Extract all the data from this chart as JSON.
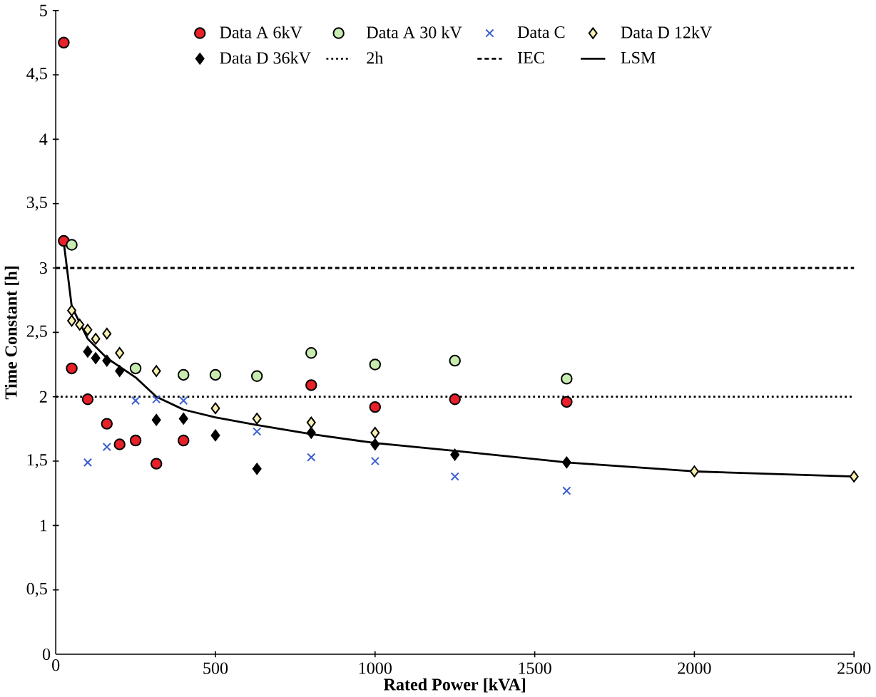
{
  "chart_data": {
    "type": "scatter",
    "xlabel": "Rated Power [kVA]",
    "ylabel": "Time Constant [h]",
    "xlim": [
      0,
      2500
    ],
    "ylim": [
      0,
      5
    ],
    "xticks": [
      0,
      500,
      1000,
      1500,
      2000,
      2500
    ],
    "yticks": [
      0,
      {
        "value": 0.5,
        "label": "0,5"
      },
      1,
      {
        "value": 1.5,
        "label": "1,5"
      },
      2,
      {
        "value": 2.5,
        "label": "2,5"
      },
      3,
      {
        "value": 3.5,
        "label": "3,5"
      },
      4,
      {
        "value": 4.5,
        "label": "4,5"
      },
      5
    ],
    "grid": false,
    "legend": "top",
    "series": [
      {
        "name": "Data A 6kV",
        "marker": "circle",
        "color": "#e8202a",
        "x": [
          25,
          25,
          50,
          100,
          160,
          200,
          250,
          315,
          400,
          800,
          1000,
          1250,
          1600
        ],
        "values": [
          4.75,
          3.21,
          2.22,
          1.98,
          1.79,
          1.63,
          1.66,
          1.48,
          1.66,
          2.09,
          1.92,
          1.98,
          1.96
        ]
      },
      {
        "name": "Data A 30 kV",
        "marker": "circle",
        "color": "#c8ecb0",
        "x": [
          50,
          250,
          400,
          500,
          630,
          800,
          1000,
          1250,
          1600
        ],
        "values": [
          3.18,
          2.22,
          2.17,
          2.17,
          2.16,
          2.34,
          2.25,
          2.28,
          2.14
        ]
      },
      {
        "name": "Data C",
        "marker": "cross",
        "color": "#3b5fd0",
        "x": [
          100,
          160,
          250,
          315,
          400,
          630,
          800,
          1000,
          1250,
          1600
        ],
        "values": [
          1.49,
          1.61,
          1.97,
          1.98,
          1.97,
          1.73,
          1.53,
          1.5,
          1.38,
          1.27
        ]
      },
      {
        "name": "Data D 12kV",
        "marker": "diamond",
        "color": "#f8f0b0",
        "x": [
          50,
          50,
          75,
          100,
          125,
          160,
          200,
          315,
          500,
          630,
          800,
          1000,
          2000,
          2500
        ],
        "values": [
          2.67,
          2.59,
          2.56,
          2.52,
          2.45,
          2.49,
          2.34,
          2.2,
          1.91,
          1.83,
          1.8,
          1.72,
          1.42,
          1.38
        ]
      },
      {
        "name": "Data D 36kV",
        "marker": "diamond",
        "color": "#000000",
        "x": [
          100,
          125,
          160,
          200,
          315,
          400,
          500,
          630,
          800,
          1000,
          1250,
          1600
        ],
        "values": [
          2.35,
          2.3,
          2.28,
          2.2,
          1.82,
          1.83,
          1.7,
          1.44,
          1.72,
          1.63,
          1.55,
          1.49
        ]
      },
      {
        "name": "2h",
        "type": "line",
        "marker": "none",
        "line_style": "dotted",
        "color": "#000000",
        "x": [
          0,
          2500
        ],
        "values": [
          2,
          2
        ]
      },
      {
        "name": "IEC",
        "type": "line",
        "marker": "none",
        "line_style": "dashed",
        "color": "#000000",
        "x": [
          0,
          2500
        ],
        "values": [
          3,
          3
        ]
      },
      {
        "name": "LSM",
        "type": "line",
        "marker": "none",
        "line_style": "solid",
        "color": "#000000",
        "x": [
          25,
          40,
          50,
          100,
          160,
          250,
          315,
          400,
          500,
          630,
          800,
          1000,
          1250,
          1600,
          2000,
          2500
        ],
        "values": [
          3.2,
          2.9,
          2.7,
          2.45,
          2.3,
          2.15,
          2.0,
          1.9,
          1.84,
          1.78,
          1.71,
          1.64,
          1.58,
          1.49,
          1.42,
          1.38
        ]
      }
    ]
  }
}
